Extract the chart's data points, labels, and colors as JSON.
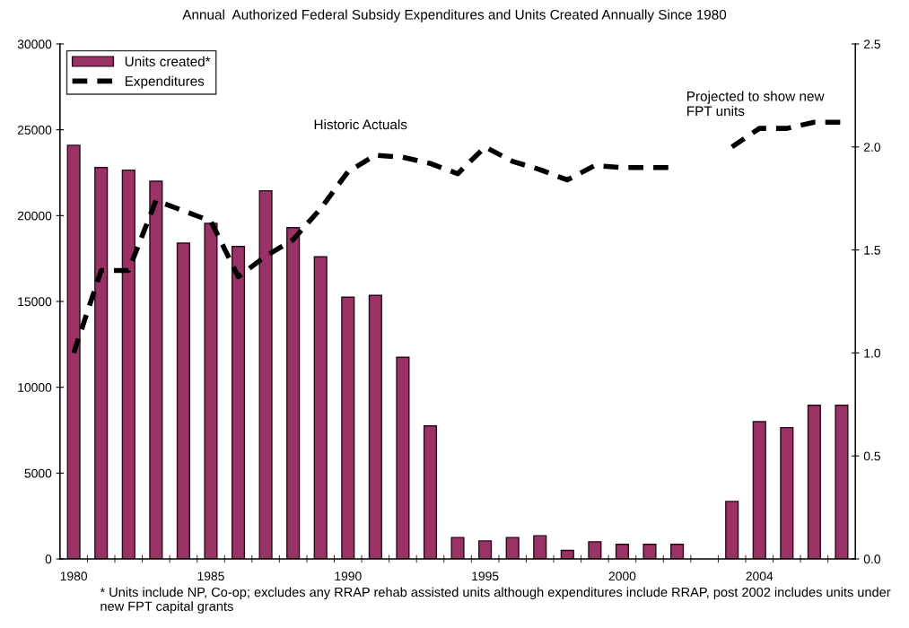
{
  "chart_data": {
    "type": "bar",
    "subtitle": "Annual  Authorized Federal Subsidy Expenditures and Units Created Annually Since 1980",
    "categories": [
      "1980",
      null,
      null,
      null,
      null,
      "1985",
      null,
      null,
      null,
      null,
      "1990",
      null,
      null,
      null,
      null,
      "1995",
      null,
      null,
      null,
      null,
      "2000",
      null,
      null,
      null,
      null,
      "2004",
      null,
      null,
      null
    ],
    "series": [
      {
        "name": "Units created*",
        "color": "#993366",
        "values": [
          24100,
          22800,
          22650,
          22000,
          18400,
          19550,
          18200,
          21450,
          19300,
          17600,
          15250,
          15350,
          11750,
          7750,
          1250,
          1050,
          1250,
          1350,
          500,
          1000,
          850,
          850,
          850,
          null,
          3350,
          8000,
          7650,
          8950,
          8950
        ]
      },
      {
        "name": "Expenditures",
        "type": "line",
        "axis": "y2",
        "color": "#000000",
        "line_style": "dashed",
        "values": [
          1.0,
          1.4,
          1.4,
          1.74,
          1.69,
          1.64,
          1.37,
          1.47,
          1.55,
          1.7,
          1.88,
          1.96,
          1.95,
          1.92,
          1.87,
          2.0,
          1.93,
          1.89,
          1.84,
          1.91,
          1.9,
          1.9,
          1.9,
          null,
          2.0,
          2.09,
          2.09,
          2.12,
          2.12
        ]
      }
    ],
    "ylim": [
      0,
      30000
    ],
    "yticks": [
      0,
      5000,
      10000,
      15000,
      20000,
      25000,
      30000
    ],
    "y2lim": [
      0,
      2.5
    ],
    "y2ticks": [
      {
        "value": 0,
        "label": "0.0"
      },
      {
        "value": 0.5,
        "label": "0.5"
      },
      {
        "value": 1,
        "label": "1.0"
      },
      {
        "value": 1.5,
        "label": "1.5"
      },
      {
        "value": 2,
        "label": "2.0"
      },
      {
        "value": 2.5,
        "label": "2.5"
      }
    ],
    "legend": "top left",
    "grid": false,
    "marker": "none",
    "annotations": [
      "Historic Actuals",
      "Projected to show new\nFPT units",
      "* Units include NP, Co-op; excludes any RRAP rehab assisted units although expenditures include RRAP, post 2002 includes units under new FPT capital grants"
    ]
  }
}
